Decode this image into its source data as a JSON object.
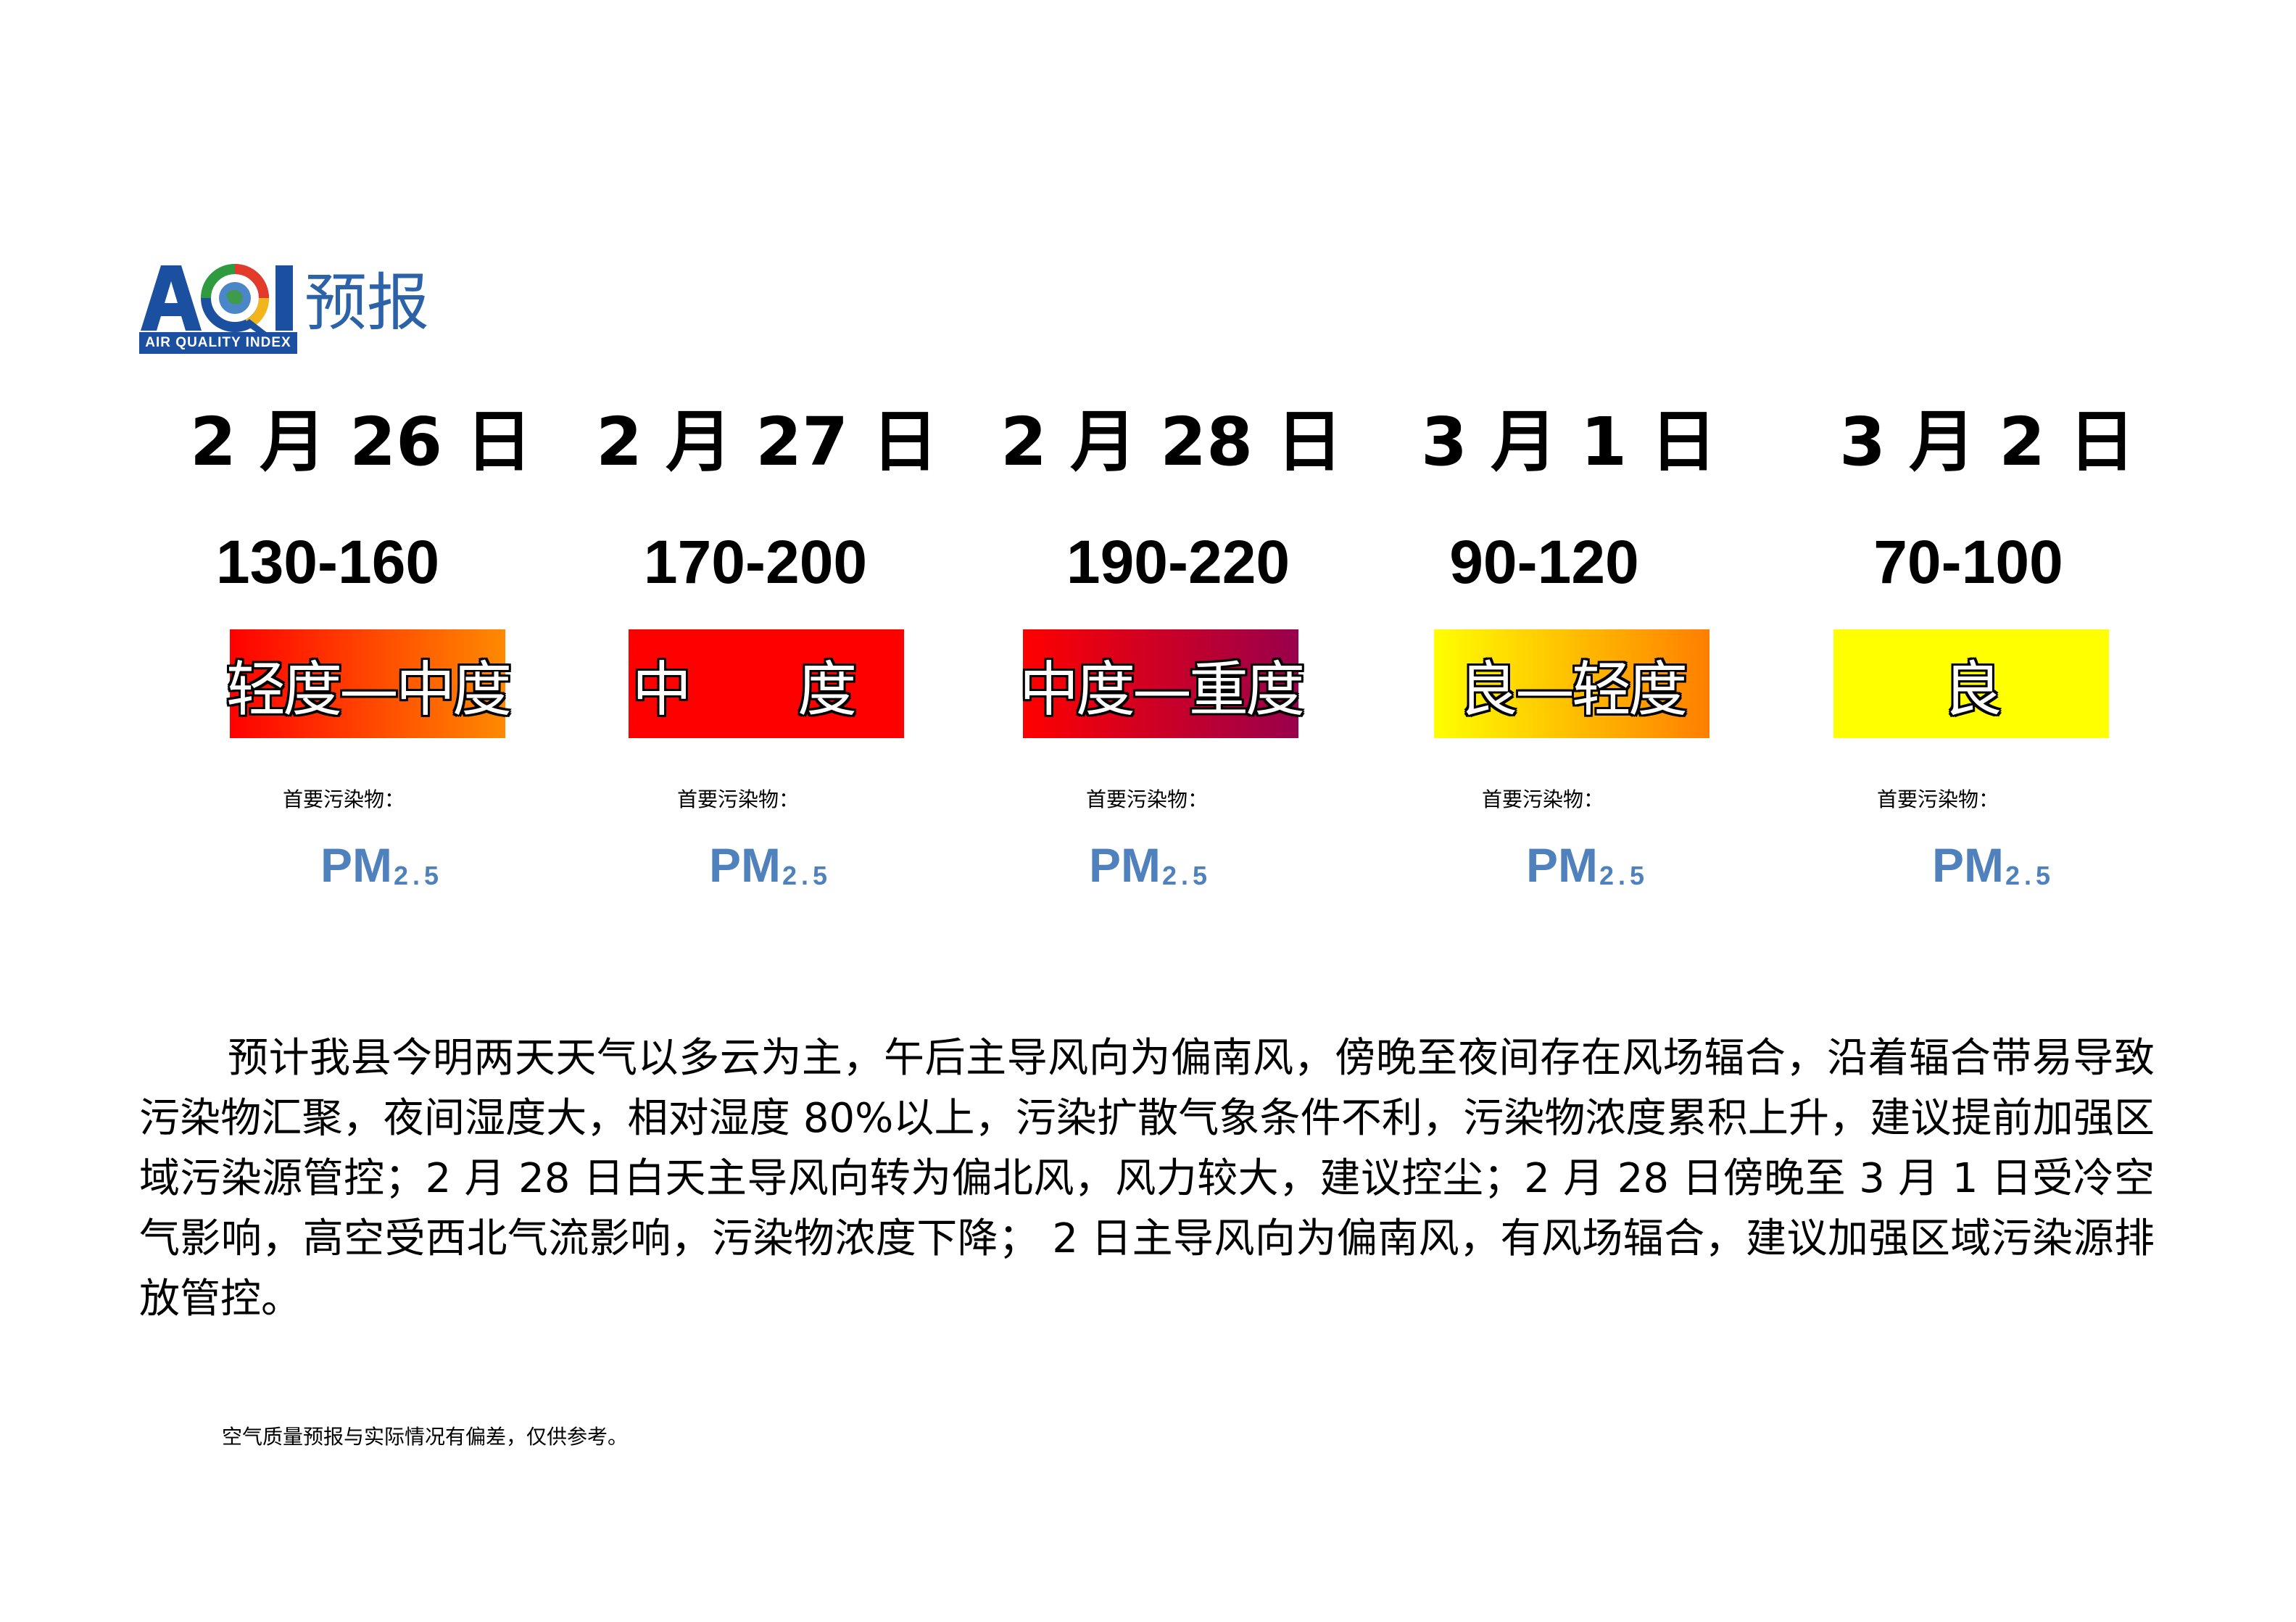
{
  "logo": {
    "letters": "AQI",
    "subtitle": "AIR QUALITY INDEX",
    "title": "预报"
  },
  "days": [
    {
      "date": "2 月 26 日",
      "range": "130-160",
      "level": "轻度—中度",
      "pollutant_label": "首要污染物：",
      "pollutant": "PM",
      "pollutant_sub": "2.5",
      "fill": "linear-gradient(to right,#ff0000,#ff8a00)"
    },
    {
      "date": "2 月 27 日",
      "range": "170-200",
      "level": "中 度",
      "pollutant_label": "首要污染物：",
      "pollutant": "PM",
      "pollutant_sub": "2.5",
      "fill": "#ff0000"
    },
    {
      "date": "2 月 28 日",
      "range": "190-220",
      "level": "中度—重度",
      "pollutant_label": "首要污染物：",
      "pollutant": "PM",
      "pollutant_sub": "2.5",
      "fill": "linear-gradient(to right,#ff0000,#99004c)"
    },
    {
      "date": "3 月 1 日",
      "range": "90-120",
      "level": "良—轻度",
      "pollutant_label": "首要污染物：",
      "pollutant": "PM",
      "pollutant_sub": "2.5",
      "fill": "linear-gradient(to right,#ffff00,#ff7e00)"
    },
    {
      "date": "3 月 2 日",
      "range": "70-100",
      "level": "良",
      "pollutant_label": "首要污染物：",
      "pollutant": "PM",
      "pollutant_sub": "2.5",
      "fill": "#ffff00"
    }
  ],
  "paragraph": "预计我县今明两天天气以多云为主，午后主导风向为偏南风，傍晚至夜间存在风场辐合，沿着辐合带易导致污染物汇聚，夜间湿度大，相对湿度 80%以上，污染扩散气象条件不利，污染物浓度累积上升，建议提前加强区域污染源管控；2 月 28 日白天主导风向转为偏北风，风力较大，建议控尘；2 月 28 日傍晚至 3 月 1 日受冷空气影响，高空受西北气流影响，污染物浓度下降； 2 日主导风向为偏南风，有风场辐合，建议加强区域污染源排放管控。",
  "note": "空气质量预报与实际情况有偏差，仅供参考。"
}
